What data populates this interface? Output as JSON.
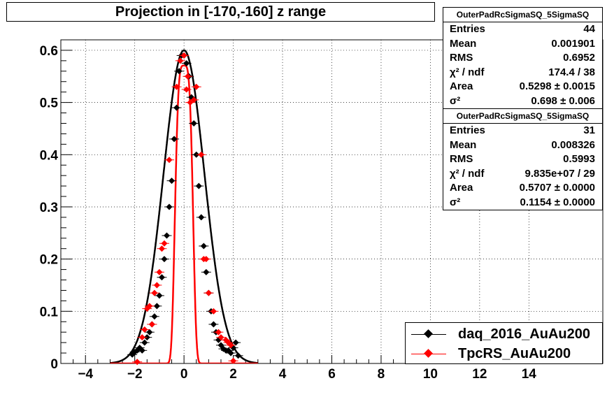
{
  "title": "Projection in [-170,-160] z range",
  "stats_boxes": [
    {
      "name": "OuterPadRcSigmaSQ_5SigmaSQ",
      "rows": [
        {
          "label": "Entries",
          "value": "44"
        },
        {
          "label": "Mean",
          "value": "0.001901"
        },
        {
          "label": "RMS",
          "value": "0.6952"
        },
        {
          "label": "χ² / ndf",
          "value": "174.4 / 38"
        },
        {
          "label": "Area",
          "value": "0.5298 ± 0.0015"
        },
        {
          "label": "σ²",
          "value": "0.698 ± 0.006"
        }
      ]
    },
    {
      "name": "OuterPadRcSigmaSQ_5SigmaSQ",
      "rows": [
        {
          "label": "Entries",
          "value": "31"
        },
        {
          "label": "Mean",
          "value": "0.008326"
        },
        {
          "label": "RMS",
          "value": "0.5993"
        },
        {
          "label": "χ² / ndf",
          "value": "9.835e+07 / 29"
        },
        {
          "label": "Area",
          "value": "0.5707 ± 0.0000"
        },
        {
          "label": "σ²",
          "value": "0.1154 ± 0.0000"
        }
      ]
    }
  ],
  "legend": [
    {
      "label": "daq_2016_AuAu200",
      "color": "#000000"
    },
    {
      "label": "TpcRS_AuAu200",
      "color": "#ff0000"
    }
  ],
  "chart_data": {
    "type": "scatter",
    "title": "Projection in [-170,-160] z range",
    "xlim": [
      -5,
      17
    ],
    "ylim": [
      0,
      0.62
    ],
    "x_ticks": [
      -4,
      -2,
      0,
      2,
      4,
      6,
      8,
      10,
      12,
      14
    ],
    "x_tick_labels": [
      "−4",
      "−2",
      "0",
      "2",
      "4",
      "6",
      "8",
      "10",
      "12",
      "14"
    ],
    "y_ticks": [
      0,
      0.1,
      0.2,
      0.3,
      0.4,
      0.5,
      0.6
    ],
    "y_tick_labels": [
      "0",
      "0.1",
      "0.2",
      "0.3",
      "0.4",
      "0.5",
      "0.6"
    ],
    "grid": true,
    "legend_position": "bottom-right",
    "series": [
      {
        "name": "daq_2016_AuAu200",
        "color": "#000000",
        "x": [
          -2.1,
          -2.0,
          -1.9,
          -1.8,
          -1.7,
          -1.6,
          -1.5,
          -1.4,
          -1.3,
          -1.2,
          -1.1,
          -1.0,
          -0.9,
          -0.8,
          -0.7,
          -0.6,
          -0.5,
          -0.4,
          -0.3,
          -0.2,
          -0.1,
          0.0,
          0.1,
          0.2,
          0.3,
          0.4,
          0.5,
          0.6,
          0.7,
          0.8,
          0.9,
          1.0,
          1.1,
          1.2,
          1.3,
          1.4,
          1.5,
          1.6,
          1.7,
          1.8,
          1.9,
          2.0,
          2.1,
          2.2
        ],
        "y": [
          0.017,
          0.022,
          0.025,
          0.03,
          0.025,
          0.04,
          0.05,
          0.06,
          0.075,
          0.09,
          0.11,
          0.13,
          0.165,
          0.2,
          0.245,
          0.3,
          0.35,
          0.43,
          0.49,
          0.56,
          0.59,
          0.59,
          0.575,
          0.55,
          0.51,
          0.46,
          0.4,
          0.34,
          0.28,
          0.225,
          0.175,
          0.135,
          0.1,
          0.075,
          0.06,
          0.045,
          0.035,
          0.028,
          0.025,
          0.025,
          0.02,
          0.03,
          0.04,
          0.015
        ],
        "fit": {
          "type": "gaussian",
          "amplitude": 0.6,
          "sigma": 0.83
        }
      },
      {
        "name": "TpcRS_AuAu200",
        "color": "#ff0000",
        "x": [
          -1.9,
          -1.7,
          -1.6,
          -1.5,
          -1.4,
          -1.3,
          -1.2,
          -1.1,
          -1.0,
          -0.9,
          -0.8,
          -0.6,
          -0.3,
          -0.15,
          0.0,
          0.1,
          0.15,
          0.25,
          0.4,
          0.5,
          0.7,
          0.8,
          0.9,
          1.0,
          1.2,
          1.4,
          1.5,
          1.7,
          1.8,
          1.9,
          2.0
        ],
        "y": [
          0.003,
          0.05,
          0.065,
          0.105,
          0.11,
          0.075,
          0.135,
          0.15,
          0.175,
          0.22,
          0.23,
          0.39,
          0.53,
          0.58,
          0.59,
          0.525,
          0.55,
          0.5,
          0.505,
          0.53,
          0.4,
          0.2,
          0.2,
          0.135,
          0.1,
          0.06,
          0.05,
          0.045,
          0.04,
          0.035,
          0.005
        ],
        "fit": {
          "type": "gaussian",
          "amplitude": 0.5707,
          "sigma": 0.34,
          "exponent": 4
        }
      }
    ]
  }
}
